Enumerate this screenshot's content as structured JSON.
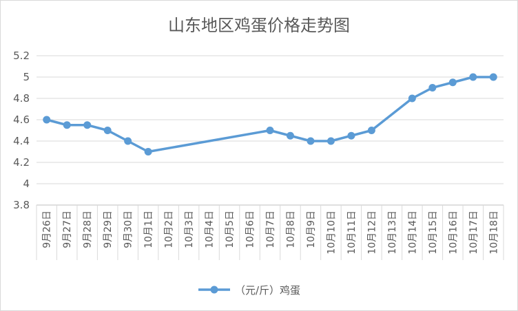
{
  "chart_data": {
    "type": "line",
    "title": "山东地区鸡蛋价格走势图",
    "xlabel": "",
    "ylabel": "",
    "categories": [
      "9月26日",
      "9月27日",
      "9月28日",
      "9月29日",
      "9月30日",
      "10月1日",
      "10月2日",
      "10月3日",
      "10月4日",
      "10月5日",
      "10月6日",
      "10月7日",
      "10月8日",
      "10月9日",
      "10月10日",
      "10月11日",
      "10月12日",
      "10月13日",
      "10月14日",
      "10月15日",
      "10月16日",
      "10月17日",
      "10月18日"
    ],
    "yticks": [
      "3.8",
      "4",
      "4.2",
      "4.4",
      "4.6",
      "4.8",
      "5",
      "5.2"
    ],
    "ylim": [
      3.8,
      5.2
    ],
    "grid": true,
    "legend_position": "bottom",
    "series": [
      {
        "name": "（元/斤）鸡蛋",
        "color": "#5b9bd5",
        "values": [
          4.6,
          4.55,
          4.55,
          4.5,
          4.4,
          4.3,
          null,
          null,
          null,
          null,
          null,
          4.5,
          4.45,
          4.4,
          4.4,
          4.45,
          4.5,
          null,
          4.8,
          4.9,
          4.95,
          5.0,
          5.0
        ]
      }
    ]
  }
}
